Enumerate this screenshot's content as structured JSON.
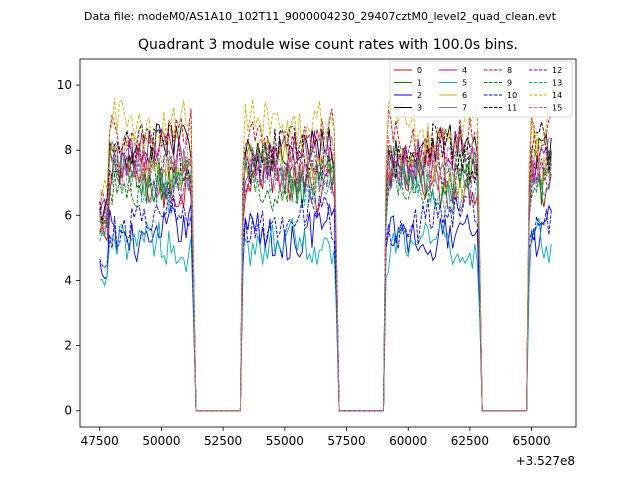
{
  "chart_data": {
    "type": "line",
    "suptitle": "Data file: modeM0/AS1A10_102T11_9000004230_29407cztM0_level2_quad_clean.evt",
    "title": "Quadrant 3 module wise count rates with 100.0s bins.",
    "xlabel": "",
    "ylabel": "",
    "x_offset_label": "+3.527e8",
    "x_offset": 352700000,
    "xlim": [
      46700,
      66800
    ],
    "ylim": [
      -0.5,
      10.8
    ],
    "x_ticks": [
      47500,
      50000,
      52500,
      55000,
      57500,
      60000,
      62500,
      65000
    ],
    "x_tick_labels": [
      "47500",
      "50000",
      "52500",
      "55000",
      "57500",
      "60000",
      "62500",
      "65000"
    ],
    "y_ticks": [
      0,
      2,
      4,
      6,
      8,
      10
    ],
    "y_tick_labels": [
      "0",
      "2",
      "4",
      "6",
      "8",
      "10"
    ],
    "bin_size_s": 100,
    "segments": [
      {
        "start": 47500,
        "end": 51300
      },
      {
        "start": 53300,
        "end": 57100
      },
      {
        "start": 59100,
        "end": 62900
      },
      {
        "start": 64900,
        "end": 65800
      }
    ],
    "gaps": [
      {
        "start": 51500,
        "end": 53200
      },
      {
        "start": 57300,
        "end": 59000
      },
      {
        "start": 63100,
        "end": 64800
      }
    ],
    "series": [
      {
        "name": "0",
        "color": "#e00000",
        "dash": "solid",
        "level": 7.0
      },
      {
        "name": "1",
        "color": "#008000",
        "dash": "solid",
        "level": 7.2
      },
      {
        "name": "2",
        "color": "#0000ff",
        "dash": "solid",
        "level": 5.5
      },
      {
        "name": "3",
        "color": "#000000",
        "dash": "solid",
        "level": 8.0
      },
      {
        "name": "4",
        "color": "#aa00aa",
        "dash": "solid",
        "level": 7.8
      },
      {
        "name": "5",
        "color": "#00b0b0",
        "dash": "solid",
        "level": 5.1
      },
      {
        "name": "6",
        "color": "#c8b400",
        "dash": "solid",
        "level": 7.5
      },
      {
        "name": "7",
        "color": "#808080",
        "dash": "solid",
        "level": 7.4
      },
      {
        "name": "8",
        "color": "#e00000",
        "dash": "dashed",
        "level": 8.3
      },
      {
        "name": "9",
        "color": "#008000",
        "dash": "dashed",
        "level": 7.1
      },
      {
        "name": "10",
        "color": "#0000ff",
        "dash": "dashed",
        "level": 5.9
      },
      {
        "name": "11",
        "color": "#000000",
        "dash": "dashed",
        "level": 7.9
      },
      {
        "name": "12",
        "color": "#aa00aa",
        "dash": "dashed",
        "level": 7.3
      },
      {
        "name": "13",
        "color": "#00b0b0",
        "dash": "dashed",
        "level": 7.0
      },
      {
        "name": "14",
        "color": "#c8b400",
        "dash": "dashed",
        "level": 8.8
      },
      {
        "name": "15",
        "color": "#e060a0",
        "dash": "dashed",
        "level": 7.6
      }
    ],
    "legend": {
      "position": "top-right",
      "columns": 4
    }
  }
}
